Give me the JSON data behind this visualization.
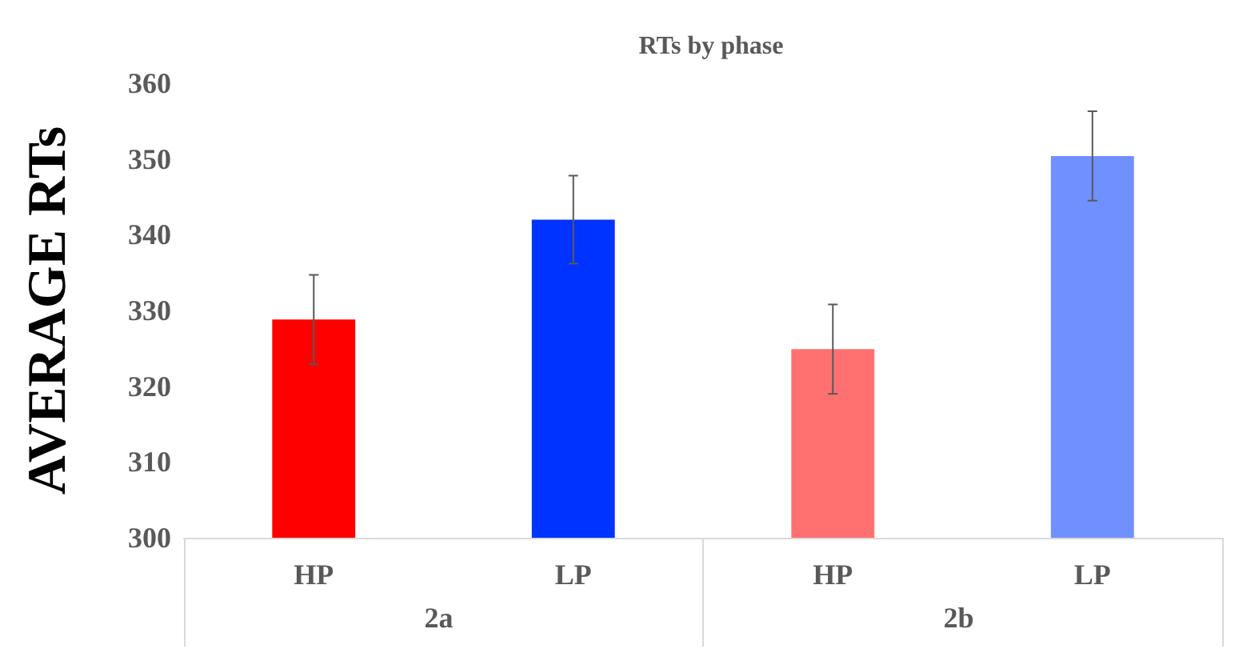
{
  "chart_data": {
    "type": "bar",
    "title": "RTs by phase",
    "ylabel": "AVERAGE RTs",
    "categories": [
      "HP",
      "LP",
      "HP",
      "LP"
    ],
    "values": [
      328.8,
      342.0,
      324.9,
      350.4
    ],
    "colors": [
      "#ff0000",
      "#0033ff",
      "#ff7070",
      "#7090ff"
    ],
    "errors": [
      5.9,
      5.8,
      5.9,
      5.9
    ],
    "annotations": [
      "2a",
      "2b"
    ],
    "ylim": [
      300,
      360
    ],
    "yticks": [
      300,
      310,
      320,
      330,
      340,
      350,
      360
    ],
    "grid": false
  }
}
